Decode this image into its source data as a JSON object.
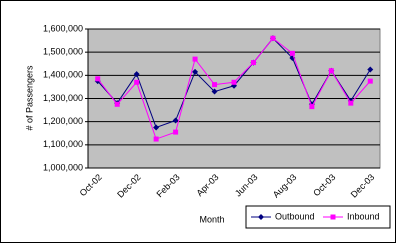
{
  "chart_data": {
    "type": "line",
    "xlabel": "Month",
    "ylabel": "# of Passengers",
    "categories": [
      "Oct-02",
      null,
      "Dec-02",
      null,
      "Feb-03",
      null,
      "Apr-03",
      null,
      "Jun-03",
      null,
      "Aug-03",
      null,
      "Oct-03",
      null,
      "Dec-03"
    ],
    "series": [
      {
        "name": "Outbound",
        "color": "#000080",
        "marker": "diamond",
        "values": [
          1375000,
          1280000,
          1405000,
          1175000,
          1205000,
          1415000,
          1330000,
          1355000,
          1455000,
          1560000,
          1475000,
          1275000,
          1420000,
          1290000,
          1425000
        ]
      },
      {
        "name": "Inbound",
        "color": "#ff00ff",
        "marker": "square",
        "values": [
          1385000,
          1275000,
          1370000,
          1125000,
          1155000,
          1470000,
          1360000,
          1370000,
          1455000,
          1560000,
          1495000,
          1265000,
          1420000,
          1280000,
          1375000
        ]
      }
    ],
    "ylim": [
      1000000,
      1600000
    ],
    "yticks": [
      {
        "value": 1000000,
        "label": "1,000,000"
      },
      {
        "value": 1100000,
        "label": "1,100,000"
      },
      {
        "value": 1200000,
        "label": "1,200,000"
      },
      {
        "value": 1300000,
        "label": "1,300,000"
      },
      {
        "value": 1400000,
        "label": "1,400,000"
      },
      {
        "value": 1500000,
        "label": "1,500,000"
      },
      {
        "value": 1600000,
        "label": "1,600,000"
      }
    ],
    "grid": true,
    "plot_background": "#c0c0c0",
    "legend": "bottom-right"
  }
}
